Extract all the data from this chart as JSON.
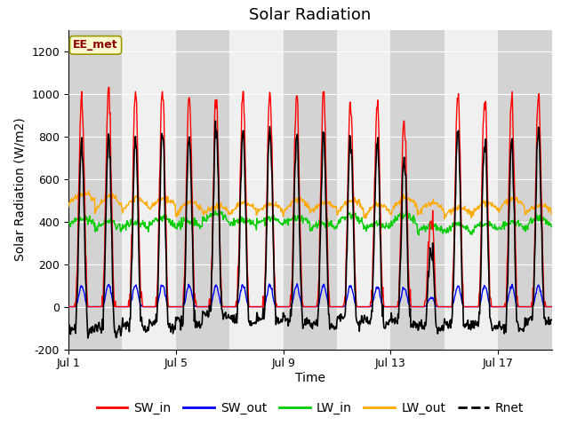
{
  "title": "Solar Radiation",
  "xlabel": "Time",
  "ylabel": "Solar Radiation (W/m2)",
  "ylim": [
    -200,
    1300
  ],
  "yticks": [
    -200,
    0,
    200,
    400,
    600,
    800,
    1000,
    1200
  ],
  "n_days": 18,
  "pts_per_day": 48,
  "xtick_positions": [
    0,
    4,
    8,
    12,
    16
  ],
  "xtick_labels": [
    "Jul 1",
    "Jul 5",
    "Jul 9",
    "Jul 13",
    "Jul 17"
  ],
  "colors": {
    "SW_in": "#ff0000",
    "SW_out": "#0000ff",
    "LW_in": "#00cc00",
    "LW_out": "#ffaa00",
    "Rnet": "#000000"
  },
  "linewidths": {
    "SW_in": 1.0,
    "SW_out": 1.0,
    "LW_in": 1.0,
    "LW_out": 1.0,
    "Rnet": 1.2
  },
  "watermark_text": "EE_met",
  "watermark_color": "#8B0000",
  "watermark_bg": "#FFFACD",
  "watermark_border": "#999900",
  "plot_bg": "#f0f0f0",
  "band_color": "#cccccc",
  "band_alpha": 0.8,
  "title_fontsize": 13,
  "axis_fontsize": 10,
  "tick_fontsize": 9,
  "legend_fontsize": 10
}
